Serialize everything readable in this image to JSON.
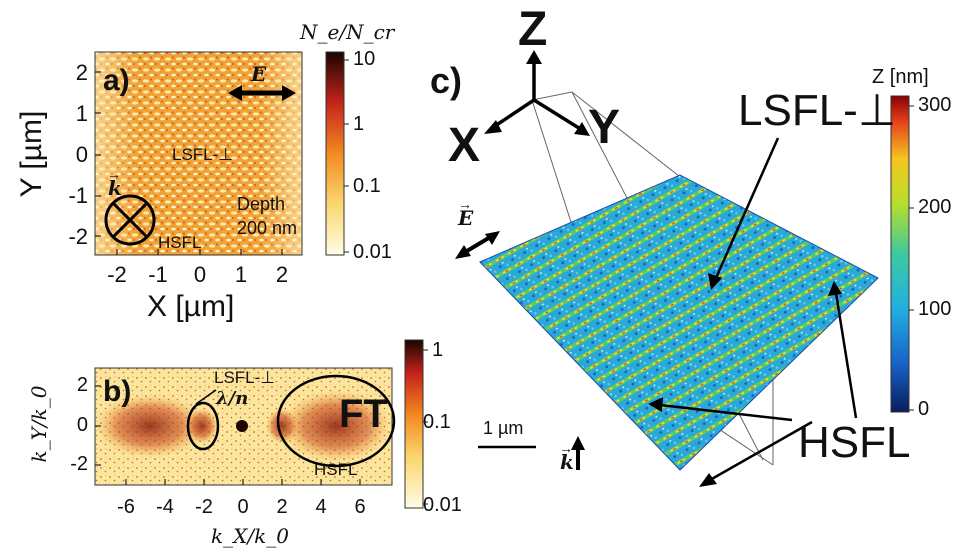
{
  "panel_a": {
    "letter": "a)",
    "cbar_title": "N_e/N_cr",
    "cbar_ticks": [
      "10",
      "1",
      "0.1",
      "0.01"
    ],
    "e_vec": "E",
    "k_vec": "k",
    "lsfl_label": "LSFL-⊥",
    "hsfl_label": "HSFL",
    "depth_line1": "Depth",
    "depth_line2": "200 nm",
    "xlabel": "X [µm]",
    "ylabel": "Y [µm]",
    "xticks": [
      "-2",
      "-1",
      "0",
      "1",
      "2"
    ],
    "yticks": [
      "2",
      "1",
      "0",
      "-1",
      "-2"
    ]
  },
  "panel_b": {
    "letter": "b)",
    "cbar_ticks": [
      "1",
      "0.1",
      "0.01"
    ],
    "lsfl_label": "LSFL-⊥",
    "lambda_label": "λ/n",
    "ft_label": "FT",
    "hsfl_label": "HSFL",
    "xlabel": "k_X/k_0",
    "ylabel": "k_Y/k_0",
    "xticks": [
      "-6",
      "-4",
      "-2",
      "0",
      "2",
      "4",
      "6"
    ],
    "yticks": [
      "2",
      "0",
      "-2"
    ]
  },
  "panel_c": {
    "letter": "c)",
    "axis_x": "X",
    "axis_y": "Y",
    "axis_z": "Z",
    "e_vec": "E",
    "k_vec": "k",
    "scale_label": "1 µm",
    "lsfl_label": "LSFL-⊥",
    "hsfl_label": "HSFL",
    "cbar_title": "Z [nm]",
    "cbar_ticks": [
      "300",
      "200",
      "100",
      "0"
    ]
  },
  "colors": {
    "ylorrd_light": "#fffde0",
    "ylorrd_mid": "#f39a1e",
    "ylorrd_dark": "#1a0500",
    "jet_high": "#8a0000",
    "jet_low": "#0a1e5a"
  }
}
